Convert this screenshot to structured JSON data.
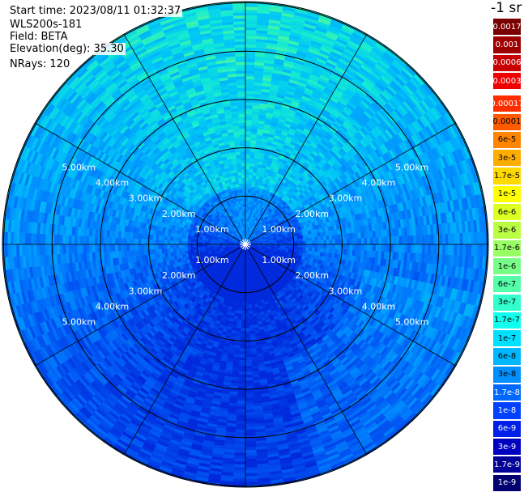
{
  "header": {
    "start_time": "Start time: 2023/08/11 01:32:37",
    "instrument": "WLS200s-181",
    "field": "Field: BETA",
    "elevation": "Elevation(deg): 35.30",
    "nrays": "NRays: 120"
  },
  "colorbar": {
    "title": "-1 sr",
    "labels": [
      "0.0017",
      "0.001",
      "0.0006",
      "0.0003",
      "0.00017",
      "0.0001",
      "6e-5",
      "3e-5",
      "1.7e-5",
      "1e-5",
      "6e-6",
      "3e-6",
      "1.7e-6",
      "1e-6",
      "6e-7",
      "3e-7",
      "1.7e-7",
      "1e-7",
      "6e-8",
      "3e-8",
      "1.7e-8",
      "1e-8",
      "6e-9",
      "3e-9",
      "1.7e-9",
      "1e-9"
    ],
    "colors": [
      "#7a0000",
      "#9e0000",
      "#c80000",
      "#f00000",
      "#ff2d00",
      "#ff5a00",
      "#ff8400",
      "#ffae00",
      "#ffd800",
      "#ffff00",
      "#ddff22",
      "#bbff44",
      "#99ff66",
      "#77ff88",
      "#55ffaa",
      "#33ffcc",
      "#11ffee",
      "#00e0ff",
      "#00b8ff",
      "#0090ff",
      "#0068ff",
      "#0040ff",
      "#0020e8",
      "#0000c0",
      "#000098",
      "#000070"
    ]
  },
  "chart_data": {
    "type": "heatmap",
    "projection": "polar PPI scan",
    "range_rings_km": [
      1.0,
      2.0,
      3.0,
      4.0,
      5.0
    ],
    "range_ring_labels": [
      "1.00km",
      "2.00km",
      "3.00km",
      "4.00km",
      "5.00km"
    ],
    "max_range_km": 5.0,
    "radial_lines_deg": [
      0,
      30,
      60,
      90,
      120,
      150,
      180,
      210,
      240,
      270,
      300,
      330
    ],
    "field": "BETA",
    "elevation_deg": 35.3,
    "nrays": 120,
    "colormap": "jet",
    "scale": "log",
    "value_range": [
      1e-09,
      0.0017
    ]
  }
}
